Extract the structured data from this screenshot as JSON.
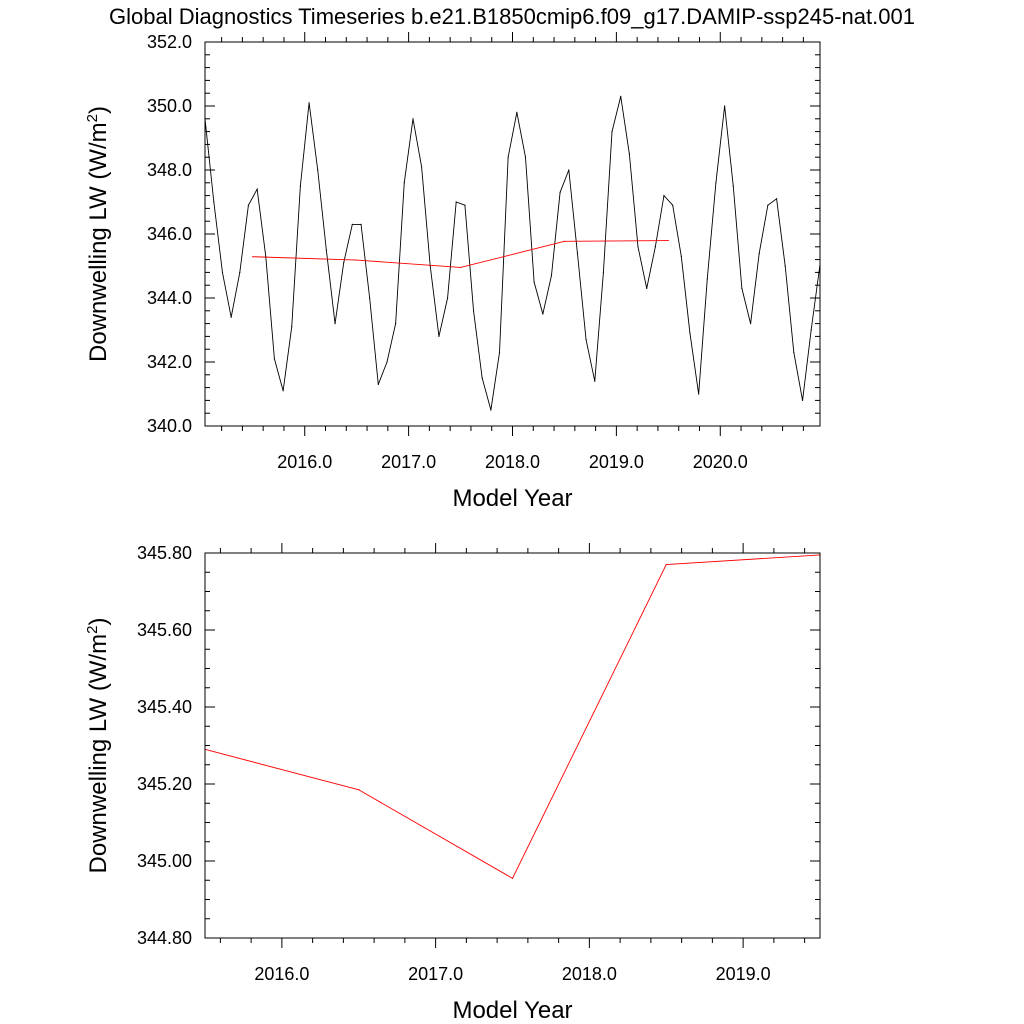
{
  "figure_title": "Global Diagnostics Timeseries b.e21.B1850cmip6.f09_g17.DAMIP-ssp245-nat.001",
  "colors": {
    "monthly": "#000000",
    "annual": "#ff0000",
    "frame": "#000000"
  },
  "chart_data": [
    {
      "type": "line",
      "xlabel": "Model Year",
      "ylabel": "Downwelling LW (W/m2)",
      "ylabel_main": "Downwelling LW (W/m",
      "ylabel_sup": "2",
      "ylabel_close": ")",
      "xlim": [
        2015.04,
        2020.96
      ],
      "ylim": [
        340.0,
        352.0
      ],
      "xticks": [
        2016.0,
        2017.0,
        2018.0,
        2019.0,
        2020.0
      ],
      "xtick_labels": [
        "2016.0",
        "2017.0",
        "2018.0",
        "2019.0",
        "2020.0"
      ],
      "yticks": [
        340.0,
        342.0,
        344.0,
        346.0,
        348.0,
        350.0,
        352.0
      ],
      "ytick_labels": [
        "340.0",
        "342.0",
        "344.0",
        "346.0",
        "348.0",
        "350.0",
        "352.0"
      ],
      "series": [
        {
          "color": "#000000",
          "x": [
            2015.04,
            2015.125,
            2015.208,
            2015.292,
            2015.375,
            2015.458,
            2015.542,
            2015.625,
            2015.708,
            2015.792,
            2015.875,
            2015.958,
            2016.042,
            2016.125,
            2016.208,
            2016.292,
            2016.375,
            2016.458,
            2016.542,
            2016.625,
            2016.708,
            2016.792,
            2016.875,
            2016.958,
            2017.042,
            2017.125,
            2017.208,
            2017.292,
            2017.375,
            2017.458,
            2017.542,
            2017.625,
            2017.708,
            2017.792,
            2017.875,
            2017.958,
            2018.042,
            2018.125,
            2018.208,
            2018.292,
            2018.375,
            2018.458,
            2018.542,
            2018.625,
            2018.708,
            2018.792,
            2018.875,
            2018.958,
            2019.042,
            2019.125,
            2019.208,
            2019.292,
            2019.375,
            2019.458,
            2019.542,
            2019.625,
            2019.708,
            2019.792,
            2019.875,
            2019.958,
            2020.042,
            2020.125,
            2020.208,
            2020.292,
            2020.375,
            2020.458,
            2020.542,
            2020.625,
            2020.708,
            2020.792,
            2020.875,
            2020.958
          ],
          "values": [
            349.6,
            347.0,
            344.8,
            343.4,
            344.8,
            346.9,
            347.4,
            345.3,
            342.1,
            341.1,
            343.1,
            347.5,
            350.1,
            348.0,
            345.5,
            343.2,
            345.1,
            346.3,
            346.3,
            344.0,
            341.3,
            342.0,
            343.2,
            347.6,
            349.6,
            348.1,
            345.0,
            342.8,
            344.0,
            347.0,
            346.9,
            343.6,
            341.5,
            340.5,
            342.3,
            348.4,
            349.8,
            348.4,
            344.5,
            343.5,
            344.7,
            347.3,
            348.0,
            345.4,
            342.7,
            341.4,
            344.8,
            349.2,
            350.3,
            348.5,
            345.6,
            344.3,
            345.6,
            347.2,
            346.9,
            345.3,
            342.9,
            341.0,
            344.6,
            347.6,
            350.0,
            347.5,
            344.3,
            343.2,
            345.4,
            346.9,
            347.1,
            345.0,
            342.3,
            340.8,
            343.0,
            345.0
          ]
        },
        {
          "color": "#ff0000",
          "x": [
            2015.5,
            2016.5,
            2017.5,
            2018.5,
            2019.5
          ],
          "values": [
            345.29,
            345.185,
            344.955,
            345.77,
            345.795
          ]
        }
      ]
    },
    {
      "type": "line",
      "xlabel": "Model Year",
      "ylabel": "Downwelling LW (W/m2)",
      "ylabel_main": "Downwelling LW (W/m",
      "ylabel_sup": "2",
      "ylabel_close": ")",
      "xlim": [
        2015.5,
        2019.5
      ],
      "ylim": [
        344.8,
        345.8
      ],
      "xticks": [
        2016.0,
        2017.0,
        2018.0,
        2019.0
      ],
      "xtick_labels": [
        "2016.0",
        "2017.0",
        "2018.0",
        "2019.0"
      ],
      "yticks": [
        344.8,
        345.0,
        345.2,
        345.4,
        345.6,
        345.8
      ],
      "ytick_labels": [
        "344.80",
        "345.00",
        "345.20",
        "345.40",
        "345.60",
        "345.80"
      ],
      "series": [
        {
          "color": "#ff0000",
          "x": [
            2015.5,
            2016.5,
            2017.5,
            2018.5,
            2019.5
          ],
          "values": [
            345.29,
            345.185,
            344.955,
            345.77,
            345.795
          ]
        }
      ]
    }
  ]
}
